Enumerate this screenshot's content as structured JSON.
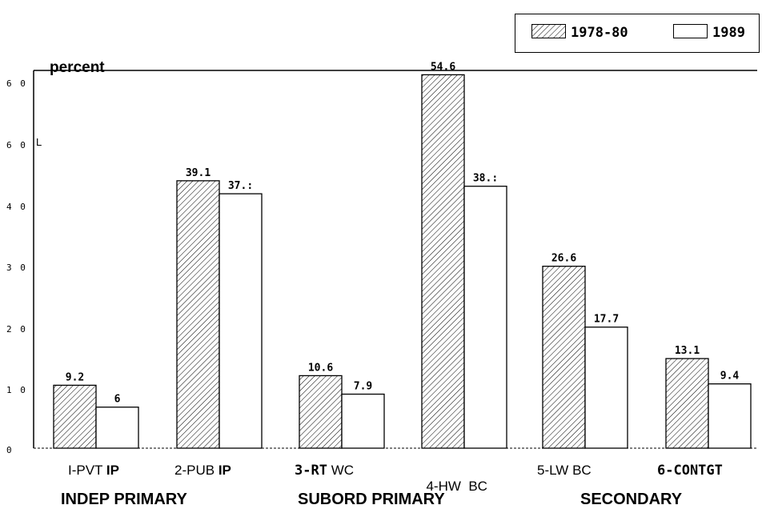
{
  "legend": {
    "series_a": "1978-80",
    "series_b": "1989"
  },
  "y_axis_title": "percent",
  "y_ticks": [
    "6 0",
    "6 0",
    "4 0",
    "3 0",
    "2 0",
    "1 0",
    "0"
  ],
  "stray_mark": "L",
  "categories": [
    {
      "plain": "I-PVT",
      "bold": "IP",
      "first_bold": false
    },
    {
      "plain": "2-PUB",
      "bold": "IP",
      "first_bold": false
    },
    {
      "plain": "WC",
      "bold": "3-RT",
      "first_bold": true
    },
    {
      "plain": "4-HW  BC",
      "bold": "",
      "first_bold": false
    },
    {
      "plain": "5-LW BC",
      "bold": "",
      "first_bold": false
    },
    {
      "plain": "",
      "bold": "6-CONTGT",
      "first_bold": true
    }
  ],
  "groups": [
    "INDEP PRIMARY",
    "SUBORD PRIMARY",
    "SECONDARY"
  ],
  "chart_data": {
    "type": "bar",
    "ylabel": "percent",
    "ylim": [
      0,
      60
    ],
    "categories": [
      "I-PVT IP",
      "2-PUB IP",
      "3-RT WC",
      "4-HW BC",
      "5-LW BC",
      "6-CONTGT"
    ],
    "groups": [
      "INDEP PRIMARY",
      "INDEP PRIMARY",
      "SUBORD PRIMARY",
      "SUBORD PRIMARY",
      "SECONDARY",
      "SECONDARY"
    ],
    "series": [
      {
        "name": "1978-80",
        "pattern": "hatched",
        "values": [
          9.2,
          39.1,
          10.6,
          54.6,
          26.6,
          13.1
        ],
        "labels": [
          "9.2",
          "39.1",
          "10.6",
          "54.6",
          "26.6",
          "13.1"
        ]
      },
      {
        "name": "1989",
        "pattern": "blank",
        "values": [
          6,
          37.2,
          7.9,
          38.3,
          17.7,
          9.4
        ],
        "labels": [
          "6",
          "37.:",
          "7.9",
          "38.:",
          "17.7",
          "9.4"
        ]
      }
    ],
    "legend": "top-right",
    "grid": false
  }
}
